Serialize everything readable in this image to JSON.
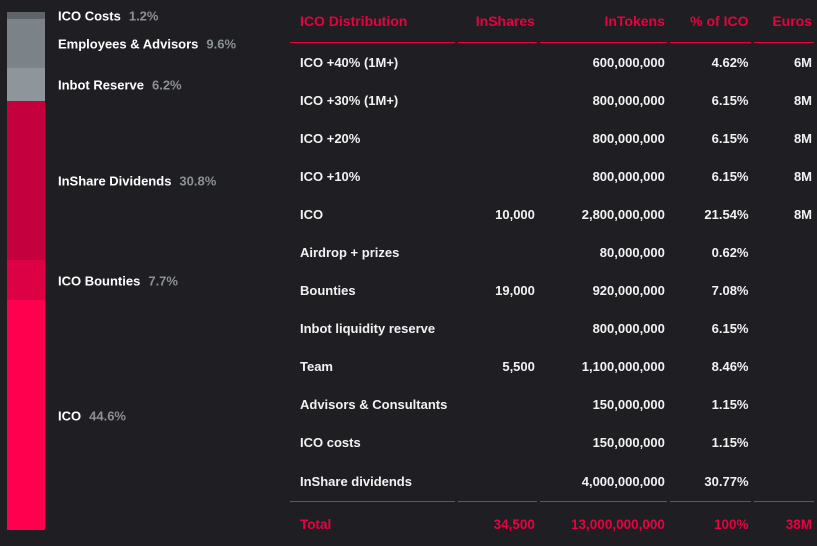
{
  "legend": [
    {
      "label": "ICO Costs",
      "pct": "1.2%",
      "color": "#5f6469"
    },
    {
      "label": "Employees & Advisors",
      "pct": "9.6%",
      "color": "#7b8288"
    },
    {
      "label": "Inbot Reserve",
      "pct": "6.2%",
      "color": "#8f969b"
    },
    {
      "label": "InShare Dividends",
      "pct": "30.8%",
      "color": "#c4003e"
    },
    {
      "label": "ICO Bounties",
      "pct": "7.7%",
      "color": "#dc0044"
    },
    {
      "label": "ICO",
      "pct": "44.6%",
      "color": "#ff004f"
    }
  ],
  "table": {
    "headers": [
      "ICO Distribution",
      "InShares",
      "InTokens",
      "% of ICO",
      "Euros"
    ],
    "rows": [
      [
        "ICO +40% (1M+)",
        "",
        "600,000,000",
        "4.62%",
        "6M"
      ],
      [
        "ICO +30% (1M+)",
        "",
        "800,000,000",
        "6.15%",
        "8M"
      ],
      [
        "ICO +20%",
        "",
        "800,000,000",
        "6.15%",
        "8M"
      ],
      [
        "ICO +10%",
        "",
        "800,000,000",
        "6.15%",
        "8M"
      ],
      [
        "ICO",
        "10,000",
        "2,800,000,000",
        "21.54%",
        "8M"
      ],
      [
        "Airdrop + prizes",
        "",
        "80,000,000",
        "0.62%",
        ""
      ],
      [
        "Bounties",
        "19,000",
        "920,000,000",
        "7.08%",
        ""
      ],
      [
        "Inbot liquidity reserve",
        "",
        "800,000,000",
        "6.15%",
        ""
      ],
      [
        "Team",
        "5,500",
        "1,100,000,000",
        "8.46%",
        ""
      ],
      [
        "Advisors & Consultants",
        "",
        "150,000,000",
        "1.15%",
        ""
      ],
      [
        "ICO costs",
        "",
        "150,000,000",
        "1.15%",
        ""
      ],
      [
        "InShare dividends",
        "",
        "4,000,000,000",
        "30.77%",
        ""
      ]
    ],
    "total": [
      "Total",
      "34,500",
      "13,000,000,000",
      "100%",
      "38M"
    ]
  }
}
